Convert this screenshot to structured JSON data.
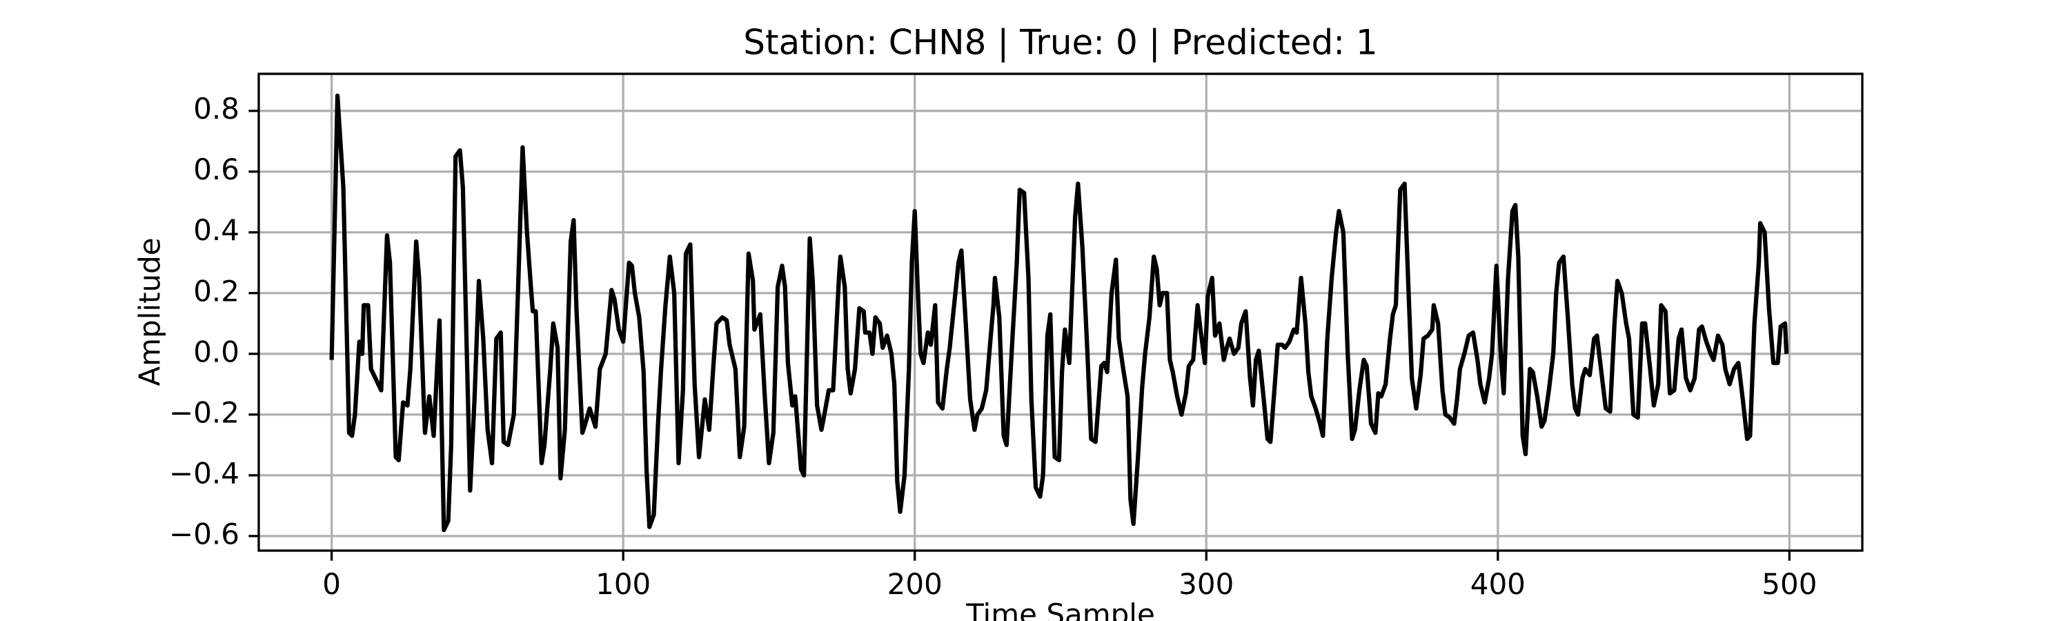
{
  "chart_data": {
    "type": "line",
    "title": "Station: CHN8 | True: 0 | Predicted: 1",
    "x_label": "Time Sample",
    "y_label": "Amplitude",
    "color": "#000000",
    "grid": true,
    "xlim": [
      -25,
      525
    ],
    "ylim": [
      -0.648,
      0.922
    ],
    "xticks": [
      0,
      100,
      200,
      300,
      400,
      500
    ],
    "yticks": [
      {
        "value": -0.6,
        "label": "−0.6"
      },
      {
        "value": -0.4,
        "label": "−0.4"
      },
      {
        "value": -0.2,
        "label": "−0.2"
      },
      {
        "value": 0,
        "label": "0.0"
      },
      0.2,
      0.4,
      0.6,
      0.8
    ],
    "x": [
      0,
      2,
      3,
      4,
      6,
      7,
      8,
      9.5,
      10.5,
      11,
      12.5,
      13.5,
      15,
      17,
      19,
      20,
      22,
      23,
      24.5,
      26,
      27,
      29,
      30,
      32,
      33.5,
      35,
      37,
      38.5,
      40,
      41,
      42.5,
      44,
      45,
      47.5,
      49,
      50.5,
      52,
      53.5,
      55,
      56.5,
      58,
      59,
      60.5,
      62.5,
      64,
      65.5,
      67,
      68.5,
      69,
      70,
      72,
      73,
      75,
      76,
      77.5,
      78.5,
      80,
      82,
      83,
      84,
      86,
      87,
      88.5,
      90.5,
      92,
      94,
      96,
      97,
      98.5,
      100,
      102,
      103,
      104,
      105.5,
      107,
      108,
      109,
      110.5,
      112,
      113,
      114.5,
      116,
      117.5,
      119,
      120.5,
      121.5,
      123,
      124.5,
      126,
      128,
      129.5,
      131,
      132,
      134,
      135.5,
      136.5,
      138.5,
      140,
      141.5,
      143,
      144.5,
      145,
      147,
      148.5,
      150,
      151.5,
      153,
      154.5,
      155.5,
      156.5,
      158,
      159,
      161,
      162,
      164,
      165,
      166.5,
      168,
      169,
      170.5,
      172,
      174,
      174.5,
      176,
      177,
      178,
      179.5,
      181,
      182.5,
      183,
      184.5,
      185.5,
      186.5,
      188,
      189,
      190.5,
      192,
      193,
      194,
      195,
      196.5,
      198,
      199,
      200,
      201,
      202,
      203,
      204.5,
      205.5,
      207,
      208,
      209.5,
      211,
      212,
      213.5,
      215,
      216,
      217.5,
      219,
      220.5,
      221.5,
      223,
      224.5,
      226,
      227,
      227.5,
      229,
      230.5,
      231.5,
      233.5,
      235,
      236,
      237.5,
      239,
      240,
      241.5,
      243,
      244,
      245.5,
      246.5,
      248,
      249.5,
      250.5,
      251.5,
      253,
      255,
      256,
      257.5,
      259,
      260.5,
      262,
      264,
      265,
      266,
      267.5,
      269,
      270,
      271.5,
      273,
      274,
      275,
      276.5,
      278,
      279,
      280.5,
      282,
      283,
      284,
      285,
      286.5,
      287.5,
      288.5,
      290,
      291.5,
      293,
      294,
      295.5,
      297,
      298,
      299.5,
      300.5,
      302,
      303,
      304.5,
      306,
      307,
      308,
      309.5,
      311,
      312,
      313.5,
      315,
      316,
      317,
      318,
      319.5,
      321,
      322,
      323.5,
      324.5,
      326,
      327,
      328.5,
      330,
      331,
      332.5,
      334,
      335,
      336,
      337.5,
      339,
      340,
      341.5,
      343,
      344.5,
      345.5,
      347,
      348.5,
      350,
      351,
      352.5,
      354,
      355,
      356.5,
      358,
      359,
      360,
      361.5,
      363,
      364,
      365,
      366.5,
      368,
      369,
      370.5,
      372,
      373.5,
      374.5,
      376,
      377.5,
      378,
      379.5,
      381,
      382,
      383.5,
      385,
      386,
      387,
      388.5,
      390,
      391.5,
      393,
      394,
      395.5,
      397,
      398,
      399.5,
      401,
      402,
      403.5,
      405,
      406,
      407,
      408.5,
      409.5,
      411,
      412,
      413.5,
      415,
      416,
      417.5,
      419,
      420,
      421,
      422.5,
      424,
      425.5,
      426.5,
      427.5,
      429,
      430,
      431.5,
      433,
      434,
      435.5,
      437,
      438.5,
      440,
      441,
      442.5,
      444,
      445,
      446.5,
      448,
      449.5,
      450.5,
      452,
      453.5,
      455,
      456,
      457.5,
      459,
      460.5,
      462,
      463,
      464.5,
      466,
      467.5,
      469,
      470,
      471.5,
      473,
      474,
      475.5,
      477,
      478,
      479.5,
      481,
      482.5,
      484,
      485.5,
      486.5,
      488,
      489.5,
      490,
      491.5,
      493,
      494.5,
      496,
      497,
      498.5,
      499
    ],
    "values": [
      -0.02,
      0.85,
      0.7,
      0.55,
      -0.26,
      -0.27,
      -0.2,
      0.04,
      0.0,
      0.16,
      0.16,
      -0.05,
      -0.08,
      -0.12,
      0.39,
      0.3,
      -0.34,
      -0.35,
      -0.16,
      -0.17,
      -0.05,
      0.37,
      0.25,
      -0.26,
      -0.14,
      -0.27,
      0.11,
      -0.58,
      -0.55,
      -0.3,
      0.65,
      0.67,
      0.55,
      -0.45,
      -0.15,
      0.24,
      0.05,
      -0.25,
      -0.36,
      0.05,
      0.07,
      -0.29,
      -0.3,
      -0.2,
      0.23,
      0.68,
      0.4,
      0.2,
      0.14,
      0.14,
      -0.36,
      -0.3,
      -0.05,
      0.1,
      0.02,
      -0.41,
      -0.25,
      0.37,
      0.44,
      0.14,
      -0.26,
      -0.23,
      -0.18,
      -0.24,
      -0.05,
      0.0,
      0.21,
      0.18,
      0.08,
      0.04,
      0.3,
      0.29,
      0.2,
      0.12,
      -0.06,
      -0.38,
      -0.57,
      -0.53,
      -0.22,
      -0.05,
      0.16,
      0.32,
      0.2,
      -0.36,
      -0.12,
      0.33,
      0.36,
      -0.1,
      -0.34,
      -0.15,
      -0.25,
      -0.03,
      0.1,
      0.12,
      0.11,
      0.03,
      -0.05,
      -0.34,
      -0.24,
      0.33,
      0.24,
      0.08,
      0.13,
      -0.13,
      -0.36,
      -0.26,
      0.22,
      0.29,
      0.22,
      -0.03,
      -0.17,
      -0.14,
      -0.38,
      -0.4,
      0.38,
      0.24,
      -0.17,
      -0.25,
      -0.2,
      -0.12,
      -0.12,
      0.25,
      0.32,
      0.22,
      -0.05,
      -0.13,
      -0.05,
      0.15,
      0.14,
      0.07,
      0.07,
      0.0,
      0.12,
      0.1,
      0.02,
      0.06,
      0.0,
      -0.1,
      -0.42,
      -0.52,
      -0.4,
      -0.05,
      0.3,
      0.47,
      0.22,
      0.0,
      -0.03,
      0.07,
      0.03,
      0.16,
      -0.16,
      -0.18,
      -0.05,
      0.02,
      0.16,
      0.3,
      0.34,
      0.1,
      -0.15,
      -0.25,
      -0.2,
      -0.18,
      -0.12,
      0.05,
      0.16,
      0.25,
      0.12,
      -0.27,
      -0.3,
      0.05,
      0.3,
      0.54,
      0.53,
      0.25,
      -0.15,
      -0.44,
      -0.47,
      -0.4,
      0.06,
      0.13,
      -0.34,
      -0.35,
      -0.06,
      0.08,
      -0.03,
      0.45,
      0.56,
      0.35,
      0.05,
      -0.28,
      -0.29,
      -0.04,
      -0.03,
      -0.06,
      0.2,
      0.31,
      0.05,
      -0.05,
      -0.14,
      -0.48,
      -0.56,
      -0.35,
      -0.11,
      0.0,
      0.12,
      0.32,
      0.28,
      0.16,
      0.2,
      0.2,
      -0.02,
      -0.06,
      -0.14,
      -0.2,
      -0.13,
      -0.04,
      -0.02,
      0.16,
      0.08,
      -0.03,
      0.19,
      0.25,
      0.06,
      0.1,
      -0.02,
      0.02,
      0.05,
      0.0,
      0.02,
      0.1,
      0.14,
      -0.08,
      -0.17,
      -0.02,
      0.01,
      -0.13,
      -0.28,
      -0.29,
      -0.1,
      0.03,
      0.03,
      0.02,
      0.04,
      0.08,
      0.07,
      0.25,
      0.1,
      -0.06,
      -0.14,
      -0.18,
      -0.23,
      -0.27,
      0.05,
      0.25,
      0.4,
      0.47,
      0.4,
      0.0,
      -0.28,
      -0.25,
      -0.12,
      -0.02,
      -0.04,
      -0.23,
      -0.26,
      -0.13,
      -0.14,
      -0.1,
      0.05,
      0.13,
      0.16,
      0.54,
      0.56,
      0.3,
      -0.08,
      -0.18,
      -0.07,
      0.05,
      0.06,
      0.08,
      0.16,
      0.1,
      -0.12,
      -0.2,
      -0.21,
      -0.23,
      -0.15,
      -0.05,
      0.0,
      0.06,
      0.07,
      -0.02,
      -0.1,
      -0.16,
      -0.08,
      0.0,
      0.29,
      0.0,
      -0.13,
      0.25,
      0.47,
      0.49,
      0.32,
      -0.27,
      -0.33,
      -0.05,
      -0.06,
      -0.14,
      -0.24,
      -0.22,
      -0.12,
      0.0,
      0.2,
      0.3,
      0.32,
      0.12,
      -0.1,
      -0.18,
      -0.2,
      -0.08,
      -0.05,
      -0.07,
      0.05,
      0.06,
      -0.06,
      -0.18,
      -0.19,
      0.1,
      0.24,
      0.2,
      0.1,
      0.05,
      -0.2,
      -0.21,
      0.1,
      0.1,
      -0.03,
      -0.17,
      -0.1,
      0.16,
      0.14,
      -0.13,
      -0.12,
      0.05,
      0.08,
      -0.08,
      -0.12,
      -0.08,
      0.08,
      0.09,
      0.04,
      0.0,
      -0.02,
      0.06,
      0.03,
      -0.05,
      -0.1,
      -0.05,
      -0.03,
      -0.15,
      -0.28,
      -0.27,
      0.1,
      0.3,
      0.43,
      0.4,
      0.15,
      -0.03,
      -0.03,
      0.09,
      0.1,
      0.0
    ]
  }
}
